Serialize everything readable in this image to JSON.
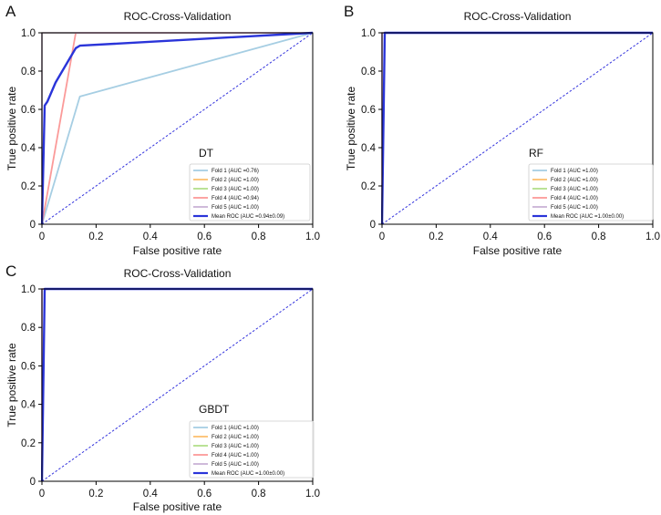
{
  "chart_data": [
    {
      "type": "line",
      "panel_label": "A",
      "title": "ROC-Cross-Validation",
      "xlabel": "False positive rate",
      "ylabel": "True positive rate",
      "xlim": [
        0,
        1
      ],
      "ylim": [
        0,
        1
      ],
      "xticks": [
        "0",
        "0.2",
        "0.4",
        "0.6",
        "0.8",
        "1.0"
      ],
      "yticks": [
        "0",
        "0.2",
        "0.4",
        "0.6",
        "0.8",
        "1.0"
      ],
      "annotation": "DT",
      "legend_position": "lower-right",
      "series": [
        {
          "name": "Fold 1 (AUC =0.76)",
          "color": "#a6cee3",
          "x": [
            0,
            0.14,
            1
          ],
          "y": [
            0,
            0.667,
            1
          ]
        },
        {
          "name": "Fold 2 (AUC =1.00)",
          "color": "#fdbf6f",
          "x": [
            0,
            0,
            1
          ],
          "y": [
            0,
            1,
            1
          ]
        },
        {
          "name": "Fold 3 (AUC =1.00)",
          "color": "#b2df8a",
          "x": [
            0,
            0,
            1
          ],
          "y": [
            0,
            1,
            1
          ]
        },
        {
          "name": "Fold 4 (AUC =0.94)",
          "color": "#fb9a99",
          "x": [
            0,
            0.125,
            1
          ],
          "y": [
            0,
            1,
            1
          ]
        },
        {
          "name": "Fold 5 (AUC =1.00)",
          "color": "#cab2d6",
          "x": [
            0,
            0,
            1
          ],
          "y": [
            0,
            1,
            1
          ]
        },
        {
          "name": "Mean ROC (AUC =0.94±0.09)",
          "color": "#2a34d9",
          "mean": true,
          "x": [
            0,
            0.01,
            0.02,
            0.05,
            0.1,
            0.125,
            0.14,
            1
          ],
          "y": [
            0,
            0.62,
            0.64,
            0.74,
            0.86,
            0.92,
            0.933,
            1
          ]
        }
      ]
    },
    {
      "type": "line",
      "panel_label": "B",
      "title": "ROC-Cross-Validation",
      "xlabel": "False positive rate",
      "ylabel": "True positive rate",
      "xlim": [
        0,
        1
      ],
      "ylim": [
        0,
        1
      ],
      "xticks": [
        "0",
        "0.2",
        "0.4",
        "0.6",
        "0.8",
        "1.0"
      ],
      "yticks": [
        "0",
        "0.2",
        "0.4",
        "0.6",
        "0.8",
        "1.0"
      ],
      "annotation": "RF",
      "legend_position": "lower-right",
      "series": [
        {
          "name": "Fold 1 (AUC =1.00)",
          "color": "#a6cee3",
          "x": [
            0,
            0,
            1
          ],
          "y": [
            0,
            1,
            1
          ]
        },
        {
          "name": "Fold 2 (AUC =1.00)",
          "color": "#fdbf6f",
          "x": [
            0,
            0,
            1
          ],
          "y": [
            0,
            1,
            1
          ]
        },
        {
          "name": "Fold 3 (AUC =1.00)",
          "color": "#b2df8a",
          "x": [
            0,
            0,
            1
          ],
          "y": [
            0,
            1,
            1
          ]
        },
        {
          "name": "Fold 4 (AUC =1.00)",
          "color": "#fb9a99",
          "x": [
            0,
            0,
            1
          ],
          "y": [
            0,
            1,
            1
          ]
        },
        {
          "name": "Fold 5 (AUC =1.00)",
          "color": "#cab2d6",
          "x": [
            0,
            0,
            1
          ],
          "y": [
            0,
            1,
            1
          ]
        },
        {
          "name": "Mean ROC (AUC =1.00±0.00)",
          "color": "#2a34d9",
          "mean": true,
          "x": [
            0,
            0.01,
            1
          ],
          "y": [
            0,
            1,
            1
          ]
        }
      ]
    },
    {
      "type": "line",
      "panel_label": "C",
      "title": "ROC-Cross-Validation",
      "xlabel": "False positive rate",
      "ylabel": "True positive rate",
      "xlim": [
        0,
        1
      ],
      "ylim": [
        0,
        1
      ],
      "xticks": [
        "0",
        "0.2",
        "0.4",
        "0.6",
        "0.8",
        "1.0"
      ],
      "yticks": [
        "0",
        "0.2",
        "0.4",
        "0.6",
        "0.8",
        "1.0"
      ],
      "annotation": "GBDT",
      "legend_position": "lower-right",
      "series": [
        {
          "name": "Fold 1 (AUC =1.00)",
          "color": "#a6cee3",
          "x": [
            0,
            0,
            1
          ],
          "y": [
            0,
            1,
            1
          ]
        },
        {
          "name": "Fold 2 (AUC =1.00)",
          "color": "#fdbf6f",
          "x": [
            0,
            0,
            1
          ],
          "y": [
            0,
            1,
            1
          ]
        },
        {
          "name": "Fold 3 (AUC =1.00)",
          "color": "#b2df8a",
          "x": [
            0,
            0,
            1
          ],
          "y": [
            0,
            1,
            1
          ]
        },
        {
          "name": "Fold 4 (AUC =1.00)",
          "color": "#fb9a99",
          "x": [
            0,
            0,
            1
          ],
          "y": [
            0,
            1,
            1
          ]
        },
        {
          "name": "Fold 5 (AUC =1.00)",
          "color": "#cab2d6",
          "x": [
            0,
            0,
            1
          ],
          "y": [
            0,
            1,
            1
          ]
        },
        {
          "name": "Mean ROC (AUC =1.00±0.00)",
          "color": "#2a34d9",
          "mean": true,
          "x": [
            0,
            0.01,
            1
          ],
          "y": [
            0,
            1,
            1
          ]
        }
      ]
    }
  ],
  "colors": {
    "chance_line": "#3333dd",
    "axis": "#000000",
    "legend_border": "#cccccc"
  }
}
